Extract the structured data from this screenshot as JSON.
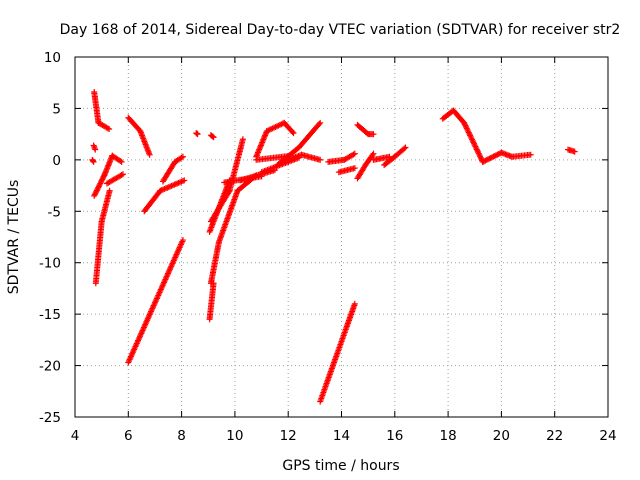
{
  "chart_data": {
    "type": "scatter",
    "title": "Day 168 of 2014, Sidereal Day-to-day VTEC variation (SDTVAR) for receiver str2",
    "xlabel": "GPS time / hours",
    "ylabel": "SDTVAR / TECUs",
    "xlim": [
      4,
      24
    ],
    "ylim": [
      -25,
      10
    ],
    "xticks": [
      4,
      6,
      8,
      10,
      12,
      14,
      16,
      18,
      20,
      22,
      24
    ],
    "yticks": [
      10,
      5,
      0,
      -5,
      -10,
      -15,
      -20,
      -25
    ],
    "xtick_labels": [
      "4",
      "6",
      "8",
      "10",
      "12",
      "14",
      "16",
      "18",
      "20",
      "22",
      "24"
    ],
    "ytick_labels": [
      "10",
      "5",
      "0",
      "-5",
      "-10",
      "-15",
      "-20",
      "-25"
    ],
    "grid": true,
    "marker": "plus",
    "colors": {
      "series": "#ff0000",
      "grid": "#a0a0a0",
      "frame": "#000000"
    },
    "segments": [
      {
        "start": [
          4.72,
          6.6
        ],
        "end": [
          4.88,
          3.6
        ]
      },
      {
        "start": [
          4.88,
          3.6
        ],
        "end": [
          5.28,
          3.0
        ]
      },
      {
        "start": [
          4.7,
          1.4
        ],
        "end": [
          4.76,
          1.0
        ]
      },
      {
        "start": [
          4.65,
          0.0
        ],
        "end": [
          4.7,
          -0.2
        ]
      },
      {
        "start": [
          4.78,
          -12.0
        ],
        "end": [
          5.0,
          -6.0
        ]
      },
      {
        "start": [
          5.0,
          -6.0
        ],
        "end": [
          5.3,
          -3.0
        ]
      },
      {
        "start": [
          4.72,
          -3.5
        ],
        "end": [
          5.1,
          -1.5
        ]
      },
      {
        "start": [
          5.1,
          -1.5
        ],
        "end": [
          5.4,
          0.4
        ]
      },
      {
        "start": [
          5.4,
          0.4
        ],
        "end": [
          5.75,
          -0.2
        ]
      },
      {
        "start": [
          5.2,
          -2.3
        ],
        "end": [
          5.8,
          -1.4
        ]
      },
      {
        "start": [
          6.0,
          4.1
        ],
        "end": [
          6.45,
          2.8
        ]
      },
      {
        "start": [
          6.45,
          2.8
        ],
        "end": [
          6.8,
          0.5
        ]
      },
      {
        "start": [
          6.6,
          -5.0
        ],
        "end": [
          7.2,
          -3.0
        ]
      },
      {
        "start": [
          7.2,
          -3.0
        ],
        "end": [
          8.1,
          -2.0
        ]
      },
      {
        "start": [
          7.3,
          -2.1
        ],
        "end": [
          7.75,
          -0.2
        ]
      },
      {
        "start": [
          7.75,
          -0.2
        ],
        "end": [
          8.05,
          0.3
        ]
      },
      {
        "start": [
          6.0,
          -19.7
        ],
        "end": [
          8.05,
          -7.8
        ]
      },
      {
        "start": [
          8.55,
          2.6
        ],
        "end": [
          8.6,
          2.5
        ]
      },
      {
        "start": [
          9.1,
          2.4
        ],
        "end": [
          9.2,
          2.2
        ]
      },
      {
        "start": [
          9.05,
          -15.5
        ],
        "end": [
          9.2,
          -12.0
        ]
      },
      {
        "start": [
          9.05,
          -7.0
        ],
        "end": [
          9.5,
          -4.0
        ]
      },
      {
        "start": [
          9.5,
          -4.0
        ],
        "end": [
          9.8,
          -2.0
        ]
      },
      {
        "start": [
          9.1,
          -12.0
        ],
        "end": [
          9.4,
          -8.0
        ]
      },
      {
        "start": [
          9.4,
          -8.0
        ],
        "end": [
          10.1,
          -3.0
        ]
      },
      {
        "start": [
          10.1,
          -3.0
        ],
        "end": [
          10.8,
          -1.5
        ]
      },
      {
        "start": [
          9.1,
          -6.0
        ],
        "end": [
          9.8,
          -3.0
        ]
      },
      {
        "start": [
          9.8,
          -3.0
        ],
        "end": [
          10.3,
          2.0
        ]
      },
      {
        "start": [
          9.6,
          -2.2
        ],
        "end": [
          11.0,
          -1.6
        ]
      },
      {
        "start": [
          10.2,
          -2.0
        ],
        "end": [
          11.5,
          -1.0
        ]
      },
      {
        "start": [
          11.0,
          -1.2
        ],
        "end": [
          12.4,
          0.2
        ]
      },
      {
        "start": [
          10.8,
          0.3
        ],
        "end": [
          11.2,
          2.8
        ]
      },
      {
        "start": [
          11.2,
          2.8
        ],
        "end": [
          11.85,
          3.6
        ]
      },
      {
        "start": [
          11.85,
          3.6
        ],
        "end": [
          12.2,
          2.6
        ]
      },
      {
        "start": [
          10.8,
          0.0
        ],
        "end": [
          12.1,
          0.4
        ]
      },
      {
        "start": [
          11.6,
          -0.5
        ],
        "end": [
          12.4,
          1.2
        ]
      },
      {
        "start": [
          12.4,
          1.2
        ],
        "end": [
          13.2,
          3.6
        ]
      },
      {
        "start": [
          12.0,
          0.0
        ],
        "end": [
          12.5,
          0.5
        ]
      },
      {
        "start": [
          12.5,
          0.5
        ],
        "end": [
          13.2,
          0.0
        ]
      },
      {
        "start": [
          13.5,
          -0.2
        ],
        "end": [
          14.1,
          0.0
        ]
      },
      {
        "start": [
          14.1,
          0.0
        ],
        "end": [
          14.5,
          0.6
        ]
      },
      {
        "start": [
          13.2,
          -23.5
        ],
        "end": [
          14.5,
          -14.0
        ]
      },
      {
        "start": [
          13.9,
          -1.2
        ],
        "end": [
          14.5,
          -0.8
        ]
      },
      {
        "start": [
          14.6,
          -1.8
        ],
        "end": [
          14.9,
          -0.5
        ]
      },
      {
        "start": [
          14.9,
          -0.5
        ],
        "end": [
          15.2,
          0.6
        ]
      },
      {
        "start": [
          14.6,
          3.4
        ],
        "end": [
          15.0,
          2.5
        ]
      },
      {
        "start": [
          15.0,
          2.5
        ],
        "end": [
          15.2,
          2.5
        ]
      },
      {
        "start": [
          15.2,
          0.0
        ],
        "end": [
          15.8,
          0.3
        ]
      },
      {
        "start": [
          15.6,
          -0.5
        ],
        "end": [
          15.95,
          0.2
        ]
      },
      {
        "start": [
          15.95,
          0.2
        ],
        "end": [
          16.4,
          1.2
        ]
      },
      {
        "start": [
          17.8,
          4.0
        ],
        "end": [
          18.2,
          4.8
        ]
      },
      {
        "start": [
          18.2,
          4.8
        ],
        "end": [
          18.6,
          3.6
        ]
      },
      {
        "start": [
          18.6,
          3.6
        ],
        "end": [
          19.3,
          -0.2
        ]
      },
      {
        "start": [
          19.3,
          -0.2
        ],
        "end": [
          20.0,
          0.7
        ]
      },
      {
        "start": [
          20.0,
          0.7
        ],
        "end": [
          20.4,
          0.3
        ]
      },
      {
        "start": [
          20.4,
          0.3
        ],
        "end": [
          21.1,
          0.5
        ]
      },
      {
        "start": [
          22.5,
          1.0
        ],
        "end": [
          22.75,
          0.8
        ]
      }
    ]
  }
}
